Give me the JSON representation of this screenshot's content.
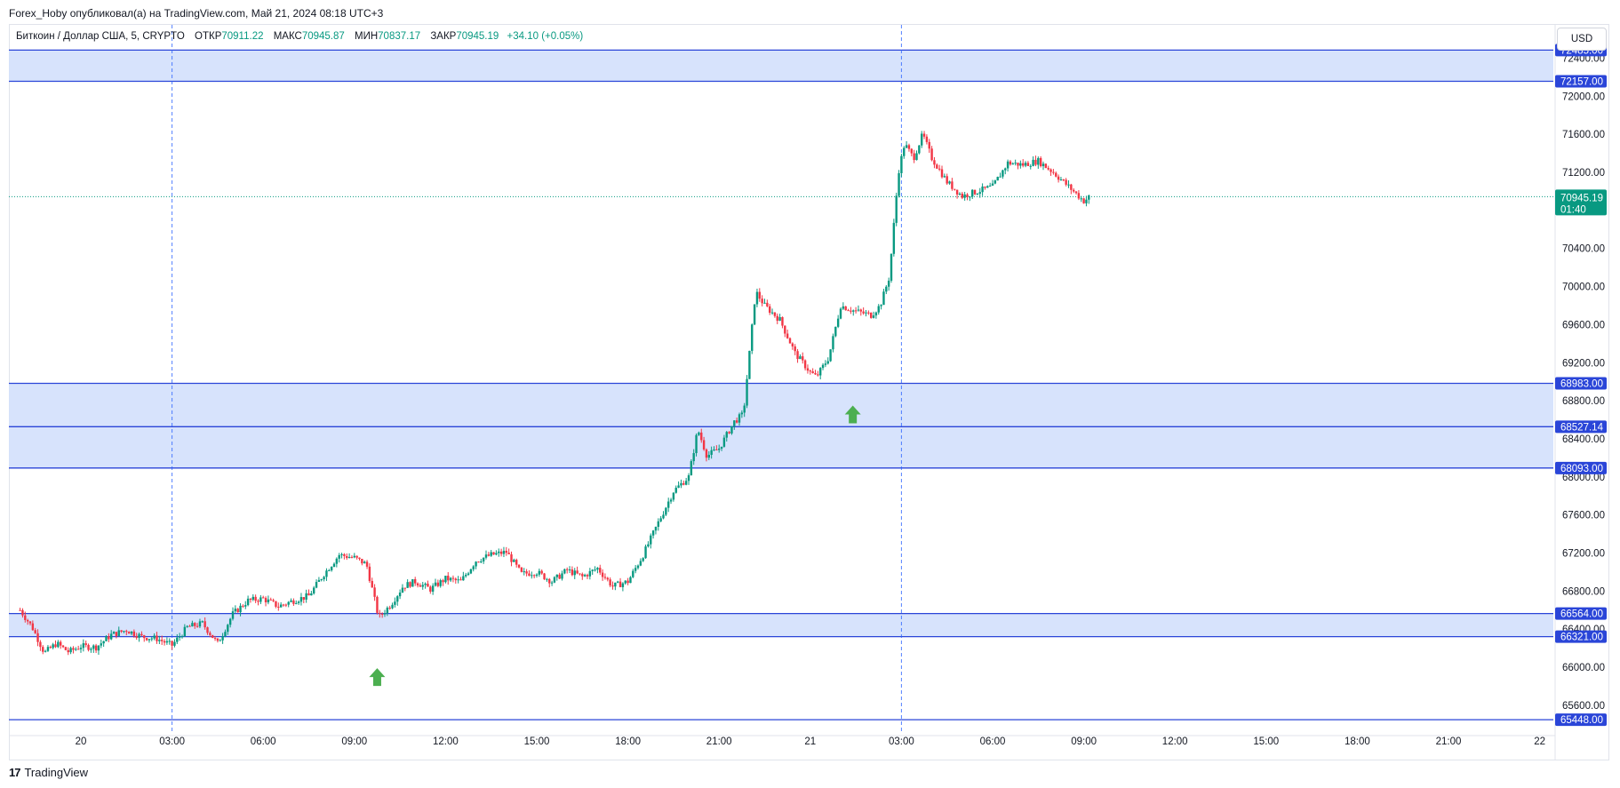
{
  "header": {
    "publisher_line": "Forex_Hoby опубликовал(а) на TradingView.com, Май 21, 2024 08:18 UTC+3"
  },
  "legend": {
    "symbol": "Биткоин / Доллар США, 5, CRYPTO",
    "open_label": "ОТКР",
    "open_value": "70911.22",
    "high_label": "МАКС",
    "high_value": "70945.87",
    "low_label": "МИН",
    "low_value": "70837.17",
    "close_label": "ЗАКР",
    "close_value": "70945.19",
    "change": "+34.10 (+0.05%)"
  },
  "currency_button": "USD",
  "brand": {
    "name": "TradingView",
    "logo_glyph": "17"
  },
  "colors": {
    "up": "#089981",
    "down": "#f23645",
    "zone_fill": "#d3e0fc",
    "zone_line": "#2a45d8",
    "level_label_bg": "#2a45d8",
    "price_label_bg": "#089981",
    "arrow": "#4caf50",
    "session_line": "#2962ff"
  },
  "chart_data": {
    "type": "candlestick",
    "title": "Биткоин / Доллар США, 5, CRYPTO",
    "ylim": [
      65300,
      72750
    ],
    "y_ticks": [
      "65600.00",
      "66000.00",
      "66400.00",
      "66800.00",
      "67200.00",
      "67600.00",
      "68000.00",
      "68400.00",
      "68800.00",
      "69200.00",
      "69600.00",
      "70000.00",
      "70400.00",
      "71200.00",
      "71600.00",
      "72000.00",
      "72400.00"
    ],
    "x_ticks": [
      "20",
      "03:00",
      "06:00",
      "09:00",
      "12:00",
      "15:00",
      "18:00",
      "21:00",
      "21",
      "03:00",
      "06:00",
      "09:00",
      "12:00",
      "15:00",
      "18:00",
      "21:00",
      "22"
    ],
    "zones": [
      {
        "top": 72485.0,
        "bottom": 72157.0
      },
      {
        "top": 68983.0,
        "bottom": 68093.0
      },
      {
        "top": 66564.0,
        "bottom": 66321.0
      }
    ],
    "levels": [
      {
        "value": 72485.0,
        "label": "72485.00"
      },
      {
        "value": 72157.0,
        "label": "72157.00"
      },
      {
        "value": 68983.0,
        "label": "68983.00"
      },
      {
        "value": 68527.14,
        "label": "68527.14"
      },
      {
        "value": 68093.0,
        "label": "68093.00"
      },
      {
        "value": 66564.0,
        "label": "66564.00"
      },
      {
        "value": 66321.0,
        "label": "66321.00"
      },
      {
        "value": 65448.0,
        "label": "65448.00"
      }
    ],
    "last_price": {
      "value": 70945.19,
      "label": "70945.19",
      "countdown": "01:40"
    },
    "session_breaks": [
      "03:00",
      "03:00"
    ],
    "buy_arrows": [
      {
        "time_hours": 9.75,
        "price": 66120
      },
      {
        "time_hours": 25.4,
        "price": 68880
      }
    ],
    "price_path": [
      [
        -2.0,
        66600
      ],
      [
        -1.6,
        66420
      ],
      [
        -1.2,
        66150
      ],
      [
        -0.8,
        66250
      ],
      [
        -0.4,
        66160
      ],
      [
        0.0,
        66220
      ],
      [
        0.5,
        66210
      ],
      [
        1.0,
        66340
      ],
      [
        1.5,
        66390
      ],
      [
        2.0,
        66320
      ],
      [
        2.5,
        66300
      ],
      [
        3.0,
        66230
      ],
      [
        3.5,
        66420
      ],
      [
        4.0,
        66460
      ],
      [
        4.5,
        66250
      ],
      [
        5.0,
        66560
      ],
      [
        5.5,
        66700
      ],
      [
        6.0,
        66720
      ],
      [
        6.5,
        66640
      ],
      [
        7.0,
        66700
      ],
      [
        7.5,
        66750
      ],
      [
        8.0,
        66980
      ],
      [
        8.5,
        67180
      ],
      [
        9.0,
        67150
      ],
      [
        9.4,
        67080
      ],
      [
        9.8,
        66520
      ],
      [
        10.2,
        66660
      ],
      [
        10.6,
        66850
      ],
      [
        11.0,
        66900
      ],
      [
        11.5,
        66820
      ],
      [
        12.0,
        66930
      ],
      [
        12.5,
        66900
      ],
      [
        13.0,
        67120
      ],
      [
        13.5,
        67180
      ],
      [
        14.0,
        67210
      ],
      [
        14.5,
        66980
      ],
      [
        15.0,
        67000
      ],
      [
        15.5,
        66900
      ],
      [
        16.0,
        67020
      ],
      [
        16.5,
        66950
      ],
      [
        17.0,
        67040
      ],
      [
        17.5,
        66850
      ],
      [
        18.0,
        66900
      ],
      [
        18.5,
        67180
      ],
      [
        19.0,
        67520
      ],
      [
        19.5,
        67850
      ],
      [
        20.0,
        68000
      ],
      [
        20.3,
        68500
      ],
      [
        20.6,
        68220
      ],
      [
        21.0,
        68300
      ],
      [
        21.5,
        68580
      ],
      [
        21.8,
        68660
      ],
      [
        22.0,
        69300
      ],
      [
        22.2,
        69950
      ],
      [
        22.5,
        69800
      ],
      [
        23.0,
        69650
      ],
      [
        23.5,
        69300
      ],
      [
        24.0,
        69100
      ],
      [
        24.2,
        69050
      ],
      [
        24.6,
        69250
      ],
      [
        25.0,
        69800
      ],
      [
        25.4,
        69750
      ],
      [
        26.0,
        69700
      ],
      [
        26.3,
        69800
      ],
      [
        26.6,
        70100
      ],
      [
        26.9,
        71200
      ],
      [
        27.1,
        71500
      ],
      [
        27.4,
        71350
      ],
      [
        27.7,
        71600
      ],
      [
        28.0,
        71350
      ],
      [
        28.5,
        71100
      ],
      [
        29.0,
        70950
      ],
      [
        29.5,
        71000
      ],
      [
        30.0,
        71050
      ],
      [
        30.5,
        71300
      ],
      [
        31.0,
        71280
      ],
      [
        31.5,
        71320
      ],
      [
        32.0,
        71200
      ],
      [
        32.5,
        71050
      ],
      [
        33.0,
        70900
      ],
      [
        33.2,
        70945
      ]
    ]
  }
}
